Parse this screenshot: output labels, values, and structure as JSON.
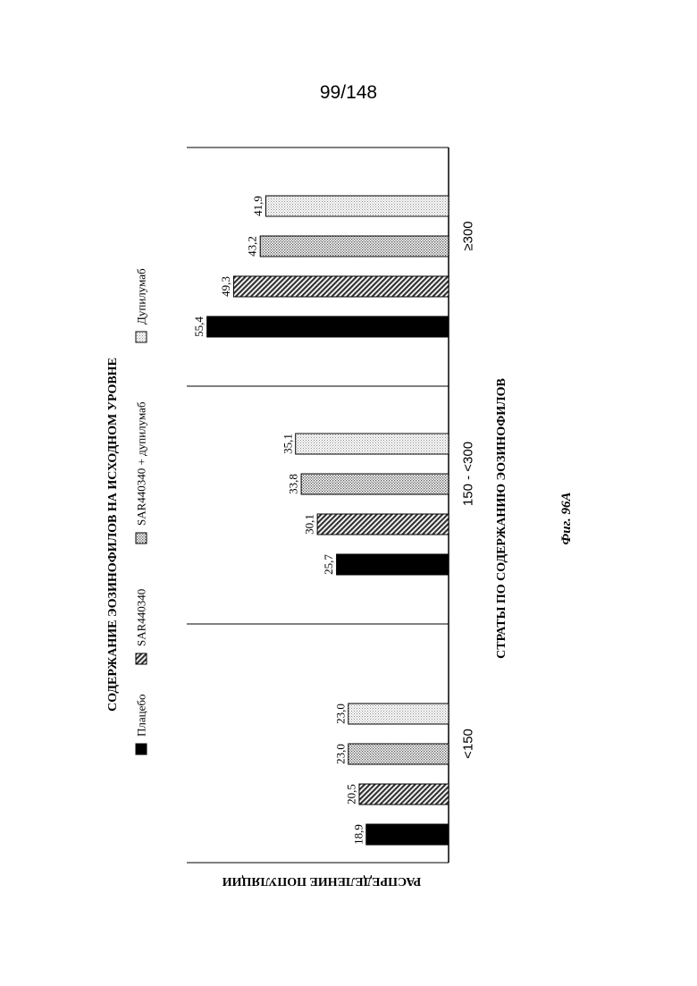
{
  "page_number": "99/148",
  "figure_caption": "Фиг. 96А",
  "colors": {
    "placebo": "#000000",
    "sar": "#555555",
    "combo": "#aaaaaa",
    "dupilumab": "#e2e2e2"
  },
  "chart_data": {
    "type": "bar",
    "orientation": "rotated 90° (horizontal bars growing from right baseline)",
    "title": "СОДЕРЖАНИЕ ЭОЗИНОФИЛОВ НА ИСХОДНОМ УРОВНЕ",
    "xlabel": "СТРАТЫ ПО СОДЕРЖАНИЮ ЭОЗИНОФИЛОВ",
    "ylabel": "РАСПРЕДЕЛЕНИЕ ПОПУЛЯЦИИ",
    "categories": [
      "<150",
      "150 - <300",
      "≥300"
    ],
    "series": [
      {
        "name": "Плацебо",
        "values": [
          18.9,
          25.7,
          55.4
        ],
        "labels": [
          "18,9",
          "25,7",
          "55,4"
        ]
      },
      {
        "name": "SAR440340",
        "values": [
          20.5,
          30.1,
          49.3
        ],
        "labels": [
          "20,5",
          "30,1",
          "49,3"
        ]
      },
      {
        "name": "SAR440340 + дупилумаб",
        "values": [
          23.0,
          33.8,
          43.2
        ],
        "labels": [
          "23,0",
          "33,8",
          "43,2"
        ]
      },
      {
        "name": "Дупилумаб",
        "values": [
          23.0,
          35.1,
          41.9
        ],
        "labels": [
          "23,0",
          "35,1",
          "41,9"
        ]
      }
    ],
    "legend_placement": "left, vertical",
    "grid": false
  }
}
